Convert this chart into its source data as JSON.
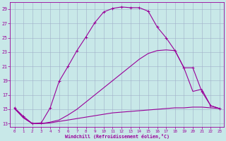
{
  "xlabel": "Windchill (Refroidissement éolien,°C)",
  "bg_color": "#c8e8e8",
  "grid_color": "#a0b0c8",
  "line_color": "#990099",
  "xlim_min": -0.5,
  "xlim_max": 23.5,
  "ylim_min": 12.5,
  "ylim_max": 30.0,
  "yticks": [
    13,
    15,
    17,
    19,
    21,
    23,
    25,
    27,
    29
  ],
  "xticks": [
    0,
    1,
    2,
    3,
    4,
    5,
    6,
    7,
    8,
    9,
    10,
    11,
    12,
    13,
    14,
    15,
    16,
    17,
    18,
    19,
    20,
    21,
    22,
    23
  ],
  "curve1_x": [
    0,
    1,
    2,
    3,
    4,
    5,
    6,
    7,
    8,
    9,
    10,
    11,
    12,
    13,
    14,
    15,
    16,
    17,
    18,
    19,
    20,
    21,
    22,
    23
  ],
  "curve1_y": [
    15.2,
    14.0,
    13.0,
    13.1,
    15.2,
    18.9,
    21.0,
    23.2,
    25.1,
    27.1,
    28.6,
    29.1,
    29.3,
    29.2,
    29.2,
    28.7,
    26.5,
    25.0,
    23.2,
    20.8,
    20.8,
    17.5,
    15.5,
    15.1
  ],
  "curve2_x": [
    0,
    1,
    2,
    3,
    4,
    5,
    6,
    7,
    8,
    9,
    10,
    11,
    12,
    13,
    14,
    15,
    16,
    17,
    18,
    19,
    20,
    21,
    22,
    23
  ],
  "curve2_y": [
    15.1,
    13.8,
    13.0,
    13.0,
    13.1,
    13.3,
    13.5,
    13.7,
    13.9,
    14.1,
    14.3,
    14.5,
    14.6,
    14.7,
    14.8,
    14.9,
    15.0,
    15.1,
    15.2,
    15.2,
    15.3,
    15.3,
    15.2,
    15.1
  ],
  "curve3_x": [
    0,
    1,
    2,
    3,
    4,
    5,
    6,
    7,
    8,
    9,
    10,
    11,
    12,
    13,
    14,
    15,
    16,
    17,
    18,
    19,
    20,
    21,
    22,
    23
  ],
  "curve3_y": [
    15.1,
    13.8,
    13.0,
    13.0,
    13.2,
    13.5,
    14.2,
    15.0,
    16.0,
    17.0,
    18.0,
    19.0,
    20.0,
    21.0,
    22.0,
    22.8,
    23.2,
    23.3,
    23.2,
    20.8,
    17.5,
    17.8,
    15.5,
    15.1
  ]
}
